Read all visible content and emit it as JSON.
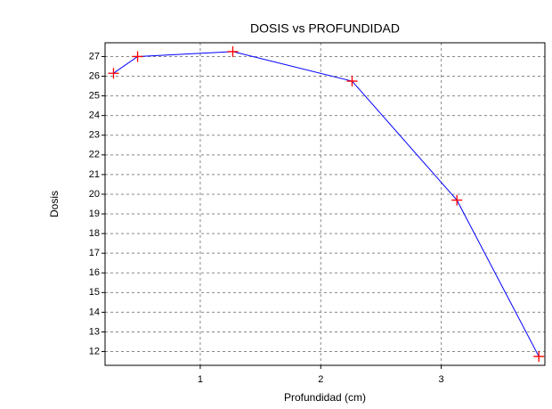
{
  "chart_data": {
    "type": "line",
    "title": "DOSIS vs PROFUNDIDAD",
    "xlabel": "Profundidad (cm)",
    "ylabel": "Dosis",
    "x": [
      0.28,
      0.48,
      1.27,
      2.26,
      3.13,
      3.81
    ],
    "series": [
      {
        "name": "Dosis",
        "color": "#0000ff",
        "marker_color": "#ff0000",
        "values": [
          26.15,
          27.0,
          27.25,
          25.75,
          19.7,
          11.75
        ]
      }
    ],
    "xlim": [
      0.21,
      3.86
    ],
    "xticks": [
      1,
      2,
      3
    ],
    "ylim": [
      11.3,
      27.7
    ],
    "yticks": [
      12,
      13,
      14,
      15,
      16,
      17,
      18,
      19,
      20,
      21,
      22,
      23,
      24,
      25,
      26,
      27
    ],
    "grid": true
  }
}
